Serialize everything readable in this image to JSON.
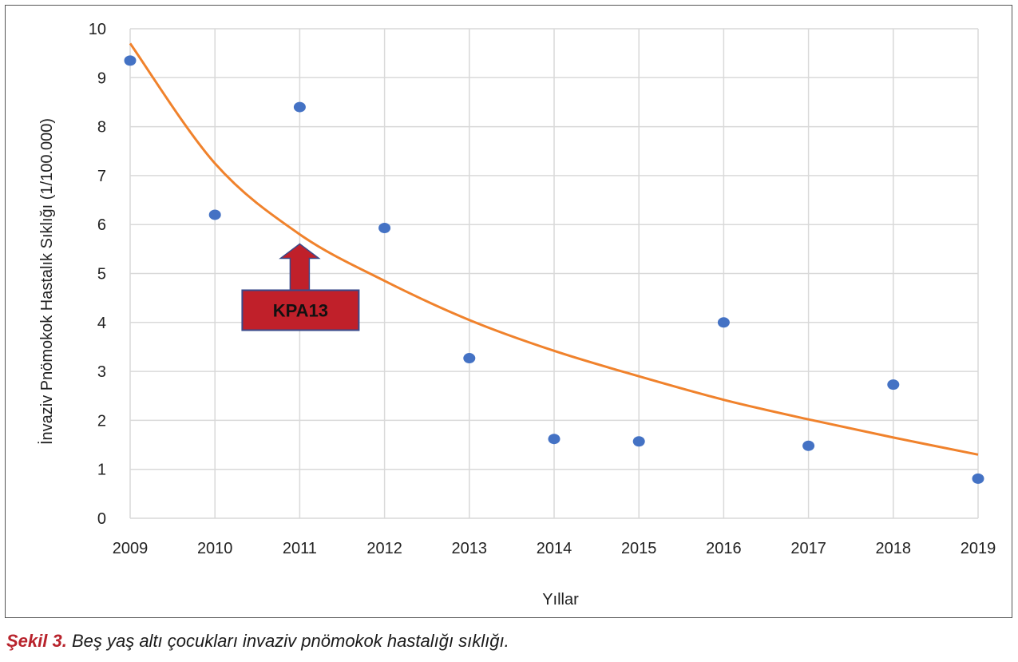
{
  "chart_data": {
    "type": "scatter",
    "x": [
      2009,
      2010,
      2011,
      2012,
      2013,
      2014,
      2015,
      2016,
      2017,
      2018,
      2019
    ],
    "y": [
      9.35,
      6.2,
      8.4,
      5.93,
      3.27,
      1.62,
      1.57,
      4.0,
      1.48,
      2.73,
      0.81
    ],
    "trendline": {
      "type": "exponential",
      "x": [
        2009,
        2010,
        2011,
        2012,
        2013,
        2014,
        2015,
        2016,
        2017,
        2018,
        2019
      ],
      "y": [
        9.7,
        7.25,
        5.8,
        4.85,
        4.05,
        3.42,
        2.9,
        2.42,
        2.02,
        1.65,
        1.3
      ]
    },
    "xlabel": "Yıllar",
    "ylabel": "İnvaziv Pnömokok Hastalık Sıklığı (1/100.000)",
    "xticks": [
      "2009",
      "2010",
      "2011",
      "2012",
      "2013",
      "2014",
      "2015",
      "2016",
      "2017",
      "2018",
      "2019"
    ],
    "yticks": [
      "0",
      "1",
      "2",
      "3",
      "4",
      "5",
      "6",
      "7",
      "8",
      "9",
      "10"
    ],
    "xlim": [
      2009,
      2019
    ],
    "ylim": [
      0,
      10
    ],
    "grid": true,
    "annotation": {
      "text": "KPA13",
      "x": 2011,
      "y": 5.8
    },
    "colors": {
      "points": "#4472c4",
      "trendline": "#f0822c",
      "annotation_fill": "#c0202a",
      "annotation_border": "#3a4a8a",
      "grid": "#d9d9d9",
      "caption_label": "#b8232c"
    }
  },
  "caption": {
    "label": "Şekil 3.",
    "text": " Beş yaş altı çocukları invaziv pnömokok hastalığı sıklığı."
  }
}
